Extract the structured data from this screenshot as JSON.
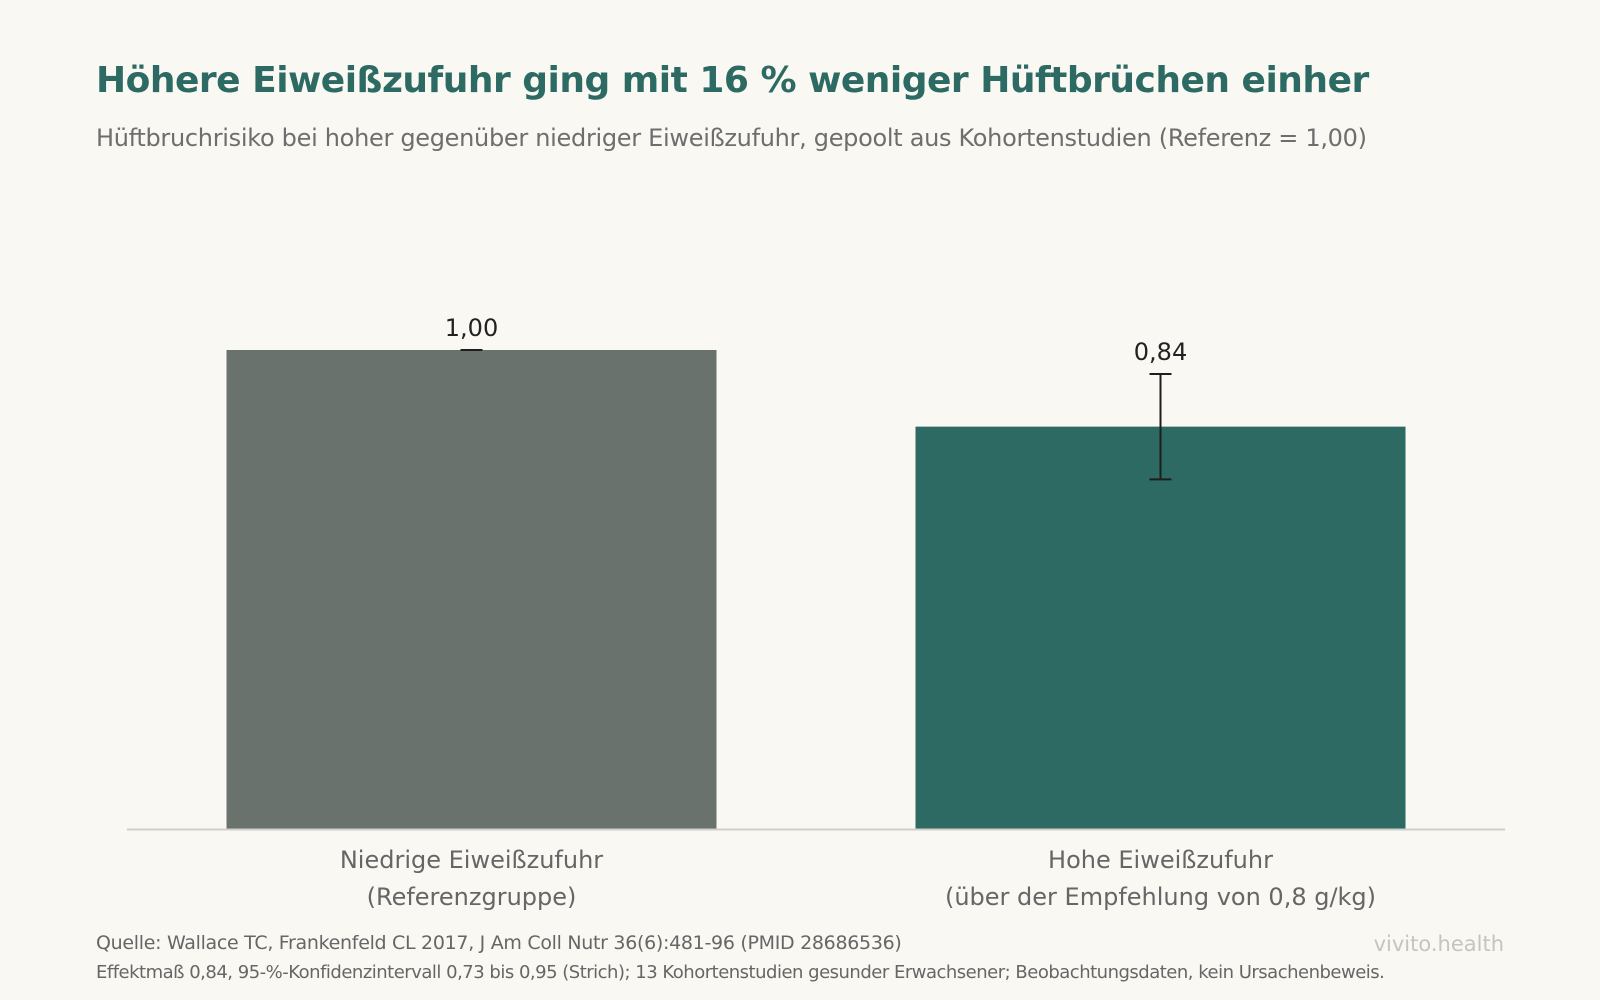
{
  "chart_data": {
    "type": "bar",
    "title": "Höhere Eiweißzufuhr ging mit 16 % weniger Hüftbrüchen einher",
    "subtitle": "Hüftbruchrisiko bei hoher gegenüber niedriger Eiweißzufuhr, gepoolt aus Kohortenstudien (Referenz = 1,00)",
    "categories": [
      [
        "Niedrige Eiweißzufuhr",
        "(Referenzgruppe)"
      ],
      [
        "Hohe Eiweißzufuhr",
        "(über der Empfehlung von 0,8 g/kg)"
      ]
    ],
    "values": [
      1.0,
      0.84
    ],
    "value_labels": [
      "1,00",
      "0,84"
    ],
    "error_bars": [
      {
        "low": 1.0,
        "high": 1.0
      },
      {
        "low": 0.73,
        "high": 0.95
      }
    ],
    "colors": [
      "#6a726e",
      "#2c6a63"
    ],
    "ylim": [
      0,
      1.0
    ],
    "grid": false,
    "xlabel": "",
    "ylabel": ""
  },
  "footer": {
    "source": "Quelle: Wallace TC, Frankenfeld CL 2017, J Am Coll Nutr 36(6):481-96 (PMID 28686536)",
    "note": "Effektmaß 0,84, 95-%-Konfidenzintervall 0,73 bis 0,95 (Strich); 13 Kohortenstudien gesunder Erwachsener; Beobachtungsdaten, kein Ursachenbeweis.",
    "brand": "vivito.health"
  }
}
